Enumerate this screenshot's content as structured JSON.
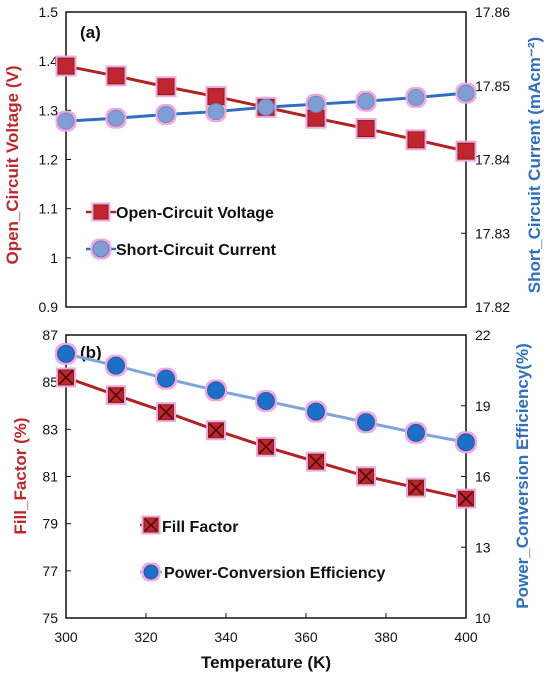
{
  "chart_data": [
    {
      "type": "line",
      "panel_label": "(a)",
      "x": [
        300,
        312.5,
        325,
        337.5,
        350,
        362.5,
        375,
        387.5,
        400
      ],
      "xlim": [
        300,
        400
      ],
      "xticks": [],
      "ylabel": "Open_Circuit Voltage (V)",
      "ylim": [
        0.9,
        1.5
      ],
      "yticks": [
        "0.9",
        "1",
        "1.1",
        "1.2",
        "1.3",
        "1.4",
        "1.5"
      ],
      "y2label": "Short_Circuit Current (mAcm⁻²)",
      "y2lim": [
        17.82,
        17.86
      ],
      "y2ticks": [
        "17.82",
        "17.83",
        "17.84",
        "17.85",
        "17.86"
      ],
      "legend_position": "lower-left",
      "grid": false,
      "series": [
        {
          "name": "Open-Circuit Voltage",
          "axis": "left",
          "marker": "square",
          "color": "#C0272D",
          "line_color": "#B22222",
          "values": [
            1.39,
            1.37,
            1.348,
            1.328,
            1.306,
            1.284,
            1.263,
            1.24,
            1.217
          ]
        },
        {
          "name": "Short-Circuit Current",
          "axis": "right",
          "marker": "circle",
          "color": "#7F9FD4",
          "line_color": "#2E6FBF",
          "values": [
            17.8452,
            17.8456,
            17.8461,
            17.8465,
            17.8471,
            17.8475,
            17.8479,
            17.8484,
            17.849
          ]
        }
      ]
    },
    {
      "type": "line",
      "panel_label": "(b)",
      "x": [
        300,
        312.5,
        325,
        337.5,
        350,
        362.5,
        375,
        387.5,
        400
      ],
      "xlim": [
        300,
        400
      ],
      "xticks": [
        "300",
        "320",
        "340",
        "360",
        "380",
        "400"
      ],
      "xlabel": "Temperature (K)",
      "ylabel": "Fill_Factor (%)",
      "ylim": [
        75,
        87
      ],
      "yticks": [
        "75",
        "77",
        "79",
        "81",
        "83",
        "85",
        "87"
      ],
      "y2label": "Power_Conversion Efficiency(%)",
      "y2lim": [
        10,
        22
      ],
      "y2ticks": [
        "10",
        "13",
        "16",
        "19",
        "22"
      ],
      "legend_position": "lower-left",
      "grid": false,
      "series": [
        {
          "name": "Fill Factor",
          "axis": "left",
          "marker": "square-x",
          "color": "#C0272D",
          "line_color": "#B22222",
          "values": [
            85.2,
            84.45,
            83.73,
            82.96,
            82.26,
            81.63,
            81.01,
            80.53,
            80.06
          ]
        },
        {
          "name": "Power-Conversion Efficiency",
          "axis": "right",
          "marker": "circle",
          "color": "#1F6FC8",
          "line_color": "#7EA6DA",
          "values": [
            21.2,
            20.7,
            20.15,
            19.65,
            19.2,
            18.75,
            18.3,
            17.85,
            17.45
          ]
        }
      ]
    }
  ]
}
